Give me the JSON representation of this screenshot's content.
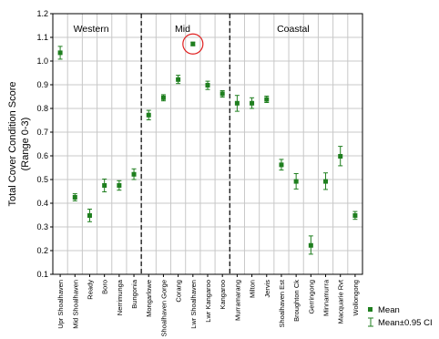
{
  "chart_data": {
    "type": "scatter",
    "xlabel": "",
    "ylabel": [
      "Total Cover Condition Score",
      "(Range 0-3)"
    ],
    "ylim": [
      0.1,
      1.2
    ],
    "yticks": [
      "0.1",
      "0.2",
      "0.3",
      "0.4",
      "0.5",
      "0.6",
      "0.7",
      "0.8",
      "0.9",
      "1.0",
      "1.1",
      "1.2"
    ],
    "grid": true,
    "categories": [
      "Upr Shoalhaven",
      "Mid Shoalhaven",
      "Ready",
      "Boro",
      "Nerrimunga",
      "Bungonia",
      "Mongarlowe",
      "Shoalhaven Gorge",
      "Corang",
      "Lwr Shoalhaven",
      "Lwr Kangaroo",
      "Kangaroo",
      "Murramarang",
      "Milton",
      "Jervis",
      "Shoalhaven Est",
      "Broughton Ck",
      "Gerringong",
      "Minnamurra",
      "Macquarie Rvt",
      "Wollongong"
    ],
    "series": [
      {
        "name": "Mean",
        "values": [
          1.035,
          0.425,
          0.348,
          0.475,
          0.475,
          0.522,
          0.772,
          0.845,
          0.922,
          1.072,
          0.898,
          0.862,
          0.822,
          0.822,
          0.838,
          0.562,
          0.492,
          0.222,
          0.492,
          0.598,
          0.348
        ],
        "ci_low": [
          1.008,
          0.41,
          0.322,
          0.448,
          0.455,
          0.5,
          0.752,
          0.832,
          0.905,
          1.065,
          0.88,
          0.848,
          0.788,
          0.8,
          0.825,
          0.54,
          0.46,
          0.185,
          0.458,
          0.558,
          0.332
        ],
        "ci_high": [
          1.062,
          0.44,
          0.375,
          0.502,
          0.495,
          0.545,
          0.792,
          0.858,
          0.94,
          1.08,
          0.915,
          0.875,
          0.855,
          0.845,
          0.852,
          0.585,
          0.525,
          0.262,
          0.528,
          0.64,
          0.365
        ],
        "color": "#1f7f1f"
      }
    ],
    "regions": [
      {
        "label": "Western"
      },
      {
        "label": "Mid"
      },
      {
        "label": "Coastal"
      }
    ],
    "highlight": {
      "category": "Lwr Shoalhaven",
      "color": "#e02020"
    },
    "legend": {
      "placement": "bottom-right",
      "mean_label": "Mean",
      "ci_label": "Mean±0.95 CI"
    }
  }
}
